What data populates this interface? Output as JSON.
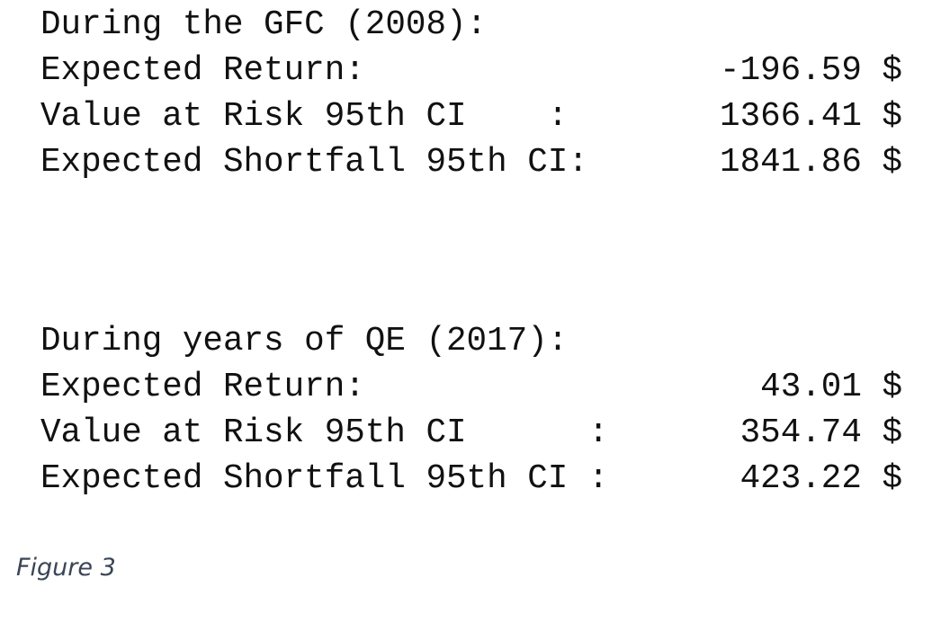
{
  "blocks": [
    {
      "heading": "During the GFC (2008):",
      "rows": [
        {
          "label": "Expected Return:",
          "value": "-196.59 $"
        },
        {
          "label": "Value at Risk 95th CI    :",
          "value": "1366.41 $"
        },
        {
          "label": "Expected Shortfall 95th CI:",
          "value": "1841.86 $"
        }
      ]
    },
    {
      "heading": "During years of QE (2017):",
      "rows": [
        {
          "label": "Expected Return:",
          "value": "43.01 $"
        },
        {
          "label": "Value at Risk 95th CI      :",
          "value": "354.74 $"
        },
        {
          "label": "Expected Shortfall 95th CI :",
          "value": "423.22 $"
        }
      ]
    }
  ],
  "caption": "Figure 3"
}
